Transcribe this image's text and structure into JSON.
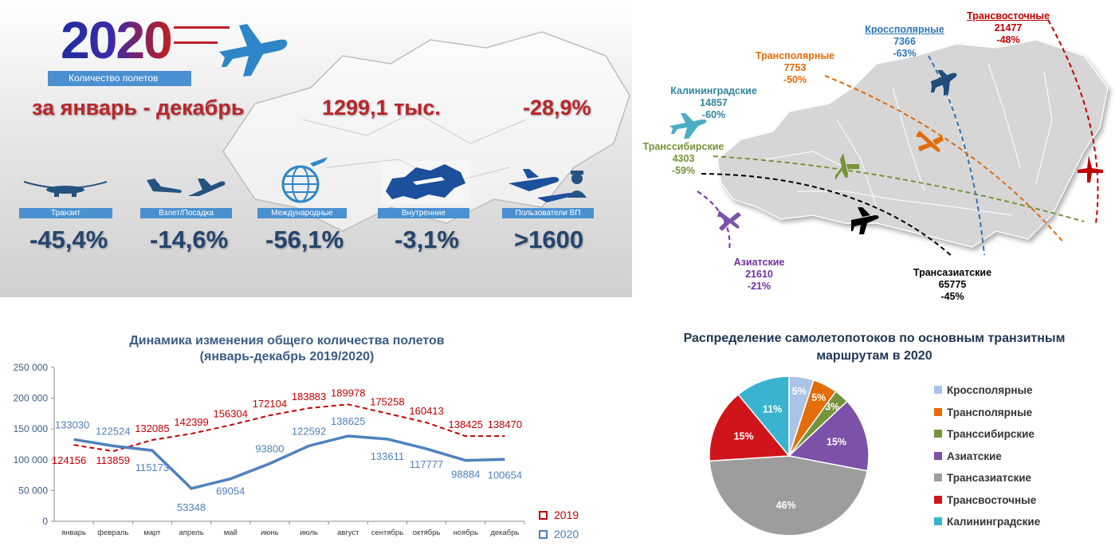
{
  "summary": {
    "year": "2020",
    "caption": "Количество полетов",
    "period": "за январь - декабрь",
    "total": "1299,1 тыс.",
    "change": "-28,9%",
    "categories": [
      {
        "label": "Транзит",
        "value": "-45,4%"
      },
      {
        "label": "Взлет/Посадка",
        "value": "-14,6%"
      },
      {
        "label": "Международные",
        "value": "-56,1%"
      },
      {
        "label": "Внутренние",
        "value": "-3,1%"
      },
      {
        "label": "Пользователи ВП",
        "value": ">1600"
      }
    ]
  },
  "routes": [
    {
      "name": "Кроссполярные",
      "count": "7366",
      "change": "-63%",
      "color": "#2e75b6"
    },
    {
      "name": "Трансвосточные",
      "count": "21477",
      "change": "-48%",
      "color": "#c00000"
    },
    {
      "name": "Трансполярные",
      "count": "7753",
      "change": "-50%",
      "color": "#e26b0a"
    },
    {
      "name": "Калининградские",
      "count": "14857",
      "change": "-60%",
      "color": "#31859c"
    },
    {
      "name": "Транссибирские",
      "count": "4303",
      "change": "-59%",
      "color": "#77933c"
    },
    {
      "name": "Азиатские",
      "count": "21610",
      "change": "-21%",
      "color": "#7030a0"
    },
    {
      "name": "Трансазиатские",
      "count": "65775",
      "change": "-45%",
      "color": "#000000"
    }
  ],
  "chart_data": [
    {
      "type": "line",
      "title": "Динамика изменения общего количества полетов",
      "subtitle": "(январь-декабрь 2019/2020)",
      "categories": [
        "январь",
        "февраль",
        "март",
        "апрель",
        "май",
        "июнь",
        "июль",
        "август",
        "сентябрь",
        "октябрь",
        "ноябрь",
        "декабрь"
      ],
      "ylim": [
        0,
        250000
      ],
      "yticks": [
        "0",
        "50 000",
        "100 000",
        "150 000",
        "200 000",
        "250 000"
      ],
      "ytick_values": [
        0,
        50000,
        100000,
        150000,
        200000,
        250000
      ],
      "legend": "bottom-right",
      "series": [
        {
          "name": "2019",
          "color": "#c00000",
          "style": "dashed",
          "values": [
            124156,
            113859,
            132085,
            142399,
            156304,
            172104,
            183883,
            189978,
            175258,
            160413,
            138425,
            138470
          ],
          "labels": [
            "124156",
            "113859",
            "132085",
            "142399",
            "156304",
            "172104",
            "183883",
            "189978",
            "175258",
            "160413",
            "138425",
            "138470"
          ]
        },
        {
          "name": "2020",
          "color": "#4f81bd",
          "style": "solid",
          "values": [
            133030,
            122524,
            115173,
            53348,
            69054,
            93800,
            122592,
            138625,
            133611,
            117777,
            98884,
            100654
          ],
          "labels": [
            "133030",
            "122524",
            "115173",
            "53348",
            "69054",
            "93800",
            "122592",
            "138625",
            "133611",
            "117777",
            "98884",
            "100654"
          ]
        }
      ]
    },
    {
      "type": "pie",
      "title": "Распределение самолетопотоков по основным транзитным маршрутам в 2020",
      "legend": "right",
      "slices": [
        {
          "name": "Кроссполярные",
          "value": 5,
          "label": "5%",
          "color": "#a9c4e6"
        },
        {
          "name": "Трансполярные",
          "value": 5,
          "label": "5%",
          "color": "#e46c0a"
        },
        {
          "name": "Транссибирские",
          "value": 3,
          "label": "3%",
          "color": "#76923c"
        },
        {
          "name": "Азиатские",
          "value": 15,
          "label": "15%",
          "color": "#7b52a8"
        },
        {
          "name": "Трансазиатские",
          "value": 46,
          "label": "46%",
          "color": "#9d9d9d"
        },
        {
          "name": "Трансвосточные",
          "value": 15,
          "label": "15%",
          "color": "#d0141b"
        },
        {
          "name": "Калининградские",
          "value": 11,
          "label": "11%",
          "color": "#3ab3d0"
        }
      ]
    }
  ]
}
